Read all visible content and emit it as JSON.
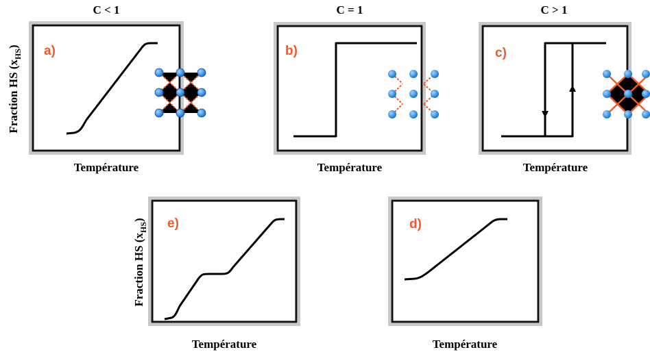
{
  "panels": [
    {
      "condition": "C < 1",
      "label": "a)",
      "x_label": "Température",
      "y_label": {
        "text": "Fraction HS (x",
        "subscript": "HS",
        "suffix": ")"
      }
    },
    {
      "condition": "C = 1",
      "label": "b)",
      "x_label": "Température"
    },
    {
      "condition": "C > 1",
      "label": "c)",
      "x_label": "Température"
    },
    {
      "label": "e)",
      "x_label": "Température",
      "y_label": {
        "text": "Fraction HS (x",
        "subscript": "HS",
        "suffix": ")"
      }
    },
    {
      "label": "d)",
      "x_label": "Température"
    }
  ]
}
